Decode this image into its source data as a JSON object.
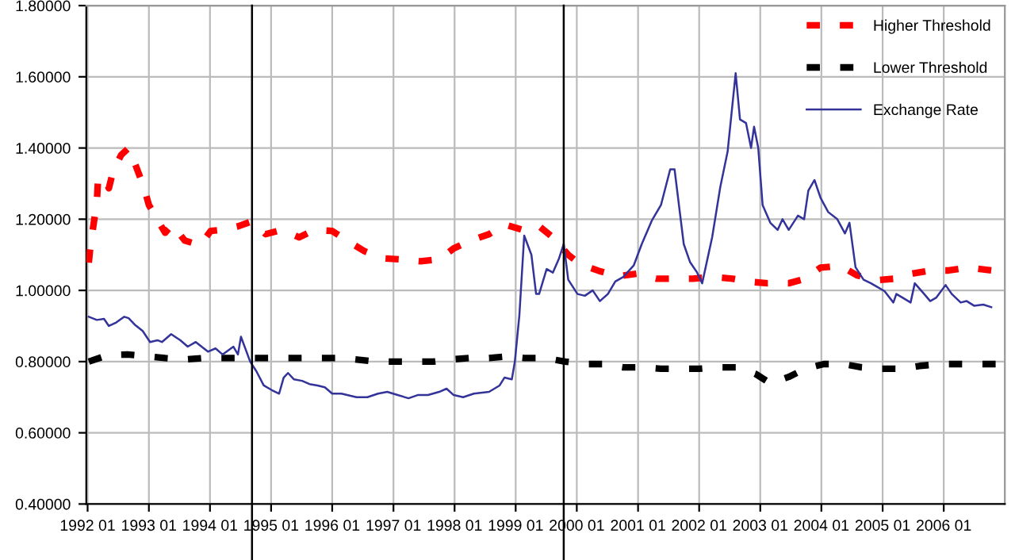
{
  "chart_data": {
    "type": "line",
    "series": [
      {
        "name": "Higher Threshold",
        "color": "#ff0000",
        "line_style": "dashed",
        "marker": "none",
        "x": [
          "1992-01-08",
          "1992-01-19",
          "1992-02-07",
          "1992-02-25",
          "1992-03-02",
          "1992-04-08",
          "1992-05-07",
          "1992-06-02",
          "1992-07-19",
          "1992-09-02",
          "1992-10-19",
          "1992-12-02",
          "1993-01-01",
          "1993-02-21",
          "1993-04-08",
          "1993-05-21",
          "1993-08-03",
          "1993-11-03",
          "1994-01-05",
          "1994-03-09",
          "1994-06-17",
          "1994-09-09",
          "1994-11-29",
          "1995-03-06",
          "1995-06-17",
          "1995-09-17",
          "1996-01-01",
          "1996-04-12",
          "1996-07-12",
          "1996-10-29",
          "1997-02-14",
          "1997-06-13",
          "1997-10-01",
          "1997-12-27",
          "1998-04-08",
          "1998-07-26",
          "1998-10-26",
          "1999-02-11",
          "1999-05-21",
          "1999-08-21",
          "1999-11-11",
          "2000-01-23",
          "2000-05-11",
          "2000-09-06",
          "2000-12-24",
          "2001-04-19",
          "2001-08-07",
          "2001-11-25",
          "2002-03-20",
          "2002-07-19",
          "2002-11-07",
          "2003-02-14",
          "2003-06-20",
          "2003-09-27",
          "2003-12-27",
          "2004-04-23",
          "2004-08-03",
          "2004-11-29",
          "2005-03-17",
          "2005-06-24",
          "2005-10-12",
          "2006-01-30",
          "2006-05-25",
          "2006-10-12"
        ],
        "values": [
          1.078,
          1.13,
          1.19,
          1.247,
          1.3,
          1.32,
          1.287,
          1.336,
          1.38,
          1.4,
          1.345,
          1.29,
          1.24,
          1.198,
          1.162,
          1.185,
          1.14,
          1.127,
          1.167,
          1.17,
          1.18,
          1.194,
          1.158,
          1.17,
          1.149,
          1.17,
          1.167,
          1.136,
          1.11,
          1.09,
          1.087,
          1.082,
          1.087,
          1.118,
          1.14,
          1.158,
          1.185,
          1.17,
          1.18,
          1.145,
          1.1,
          1.073,
          1.055,
          1.04,
          1.047,
          1.033,
          1.033,
          1.033,
          1.038,
          1.033,
          1.024,
          1.02,
          1.02,
          1.033,
          1.064,
          1.069,
          1.042,
          1.029,
          1.033,
          1.047,
          1.056,
          1.056,
          1.064,
          1.056
        ]
      },
      {
        "name": "Lower Threshold",
        "color": "#000000",
        "line_style": "dashed",
        "marker": "none",
        "x": [
          "1992-01-08",
          "1992-05-07",
          "1992-08-25",
          "1992-12-20",
          "1993-04-08",
          "1993-08-03",
          "1993-11-21",
          "1994-03-17",
          "1994-07-05",
          "1994-11-03",
          "1995-02-18",
          "1995-06-17",
          "1995-10-05",
          "1996-01-30",
          "1996-05-18",
          "1996-09-13",
          "1997-01-01",
          "1997-04-26",
          "1997-08-25",
          "1997-12-13",
          "1998-03-27",
          "1998-07-26",
          "1998-11-14",
          "1999-02-21",
          "1999-06-27",
          "1999-10-23",
          "2000-02-18",
          "2000-06-06",
          "2000-10-05",
          "2001-01-23",
          "2001-05-18",
          "2001-09-06",
          "2002-01-01",
          "2002-04-19",
          "2002-08-14",
          "2002-12-02",
          "2003-03-02",
          "2003-06-20",
          "2003-09-27",
          "2004-01-15",
          "2004-05-11",
          "2004-08-29",
          "2004-12-27",
          "2005-04-23",
          "2005-08-11",
          "2005-12-06",
          "2006-03-24",
          "2006-07-19",
          "2006-11-07"
        ],
        "values": [
          0.8,
          0.819,
          0.82,
          0.815,
          0.81,
          0.806,
          0.81,
          0.81,
          0.81,
          0.81,
          0.81,
          0.81,
          0.81,
          0.81,
          0.806,
          0.8,
          0.8,
          0.8,
          0.8,
          0.806,
          0.81,
          0.81,
          0.815,
          0.81,
          0.81,
          0.8,
          0.793,
          0.793,
          0.784,
          0.784,
          0.78,
          0.78,
          0.78,
          0.784,
          0.784,
          0.766,
          0.739,
          0.757,
          0.78,
          0.793,
          0.793,
          0.784,
          0.78,
          0.78,
          0.788,
          0.793,
          0.793,
          0.793,
          0.793
        ]
      },
      {
        "name": "Exchange Rate",
        "color": "#333399",
        "line_style": "solid",
        "marker": "none",
        "x": [
          "1992-01-08",
          "1992-02-25",
          "1992-04-08",
          "1992-05-07",
          "1992-06-20",
          "1992-08-07",
          "1992-09-02",
          "1992-10-08",
          "1992-11-25",
          "1993-01-08",
          "1993-02-21",
          "1993-03-20",
          "1993-05-14",
          "1993-07-08",
          "1993-08-21",
          "1993-10-08",
          "1993-12-20",
          "1994-02-03",
          "1994-03-17",
          "1994-05-21",
          "1994-06-17",
          "1994-07-05",
          "1994-08-29",
          "1994-10-05",
          "1994-11-18",
          "1995-01-05",
          "1995-02-18",
          "1995-03-17",
          "1995-04-12",
          "1995-05-18",
          "1995-07-05",
          "1995-08-18",
          "1995-10-05",
          "1995-11-18",
          "1996-01-01",
          "1996-02-25",
          "1996-05-25",
          "1996-07-29",
          "1996-10-01",
          "1996-11-25",
          "1997-01-26",
          "1997-04-01",
          "1997-05-25",
          "1997-07-26",
          "1997-10-01",
          "1997-11-14",
          "1997-12-27",
          "1998-02-21",
          "1998-04-26",
          "1998-07-26",
          "1998-09-27",
          "1998-10-26",
          "1998-12-09",
          "1998-12-27",
          "1999-01-23",
          "1999-02-21",
          "1999-04-05",
          "1999-05-03",
          "1999-05-21",
          "1999-07-05",
          "1999-08-11",
          "1999-09-17",
          "1999-10-15",
          "1999-11-11",
          "2000-01-05",
          "2000-02-18",
          "2000-04-05",
          "2000-05-18",
          "2000-07-05",
          "2000-08-18",
          "2000-10-05",
          "2000-12-06",
          "2001-01-23",
          "2001-03-24",
          "2001-05-18",
          "2001-07-12",
          "2001-08-07",
          "2001-10-01",
          "2001-11-07",
          "2001-12-20",
          "2002-01-19",
          "2002-03-20",
          "2002-05-07",
          "2002-06-20",
          "2002-08-07",
          "2002-09-02",
          "2002-10-08",
          "2002-11-07",
          "2002-11-25",
          "2002-12-20",
          "2003-01-15",
          "2003-03-02",
          "2003-04-15",
          "2003-05-14",
          "2003-06-20",
          "2003-08-14",
          "2003-09-20",
          "2003-10-15",
          "2003-11-21",
          "2003-12-27",
          "2004-02-11",
          "2004-04-05",
          "2004-05-21",
          "2004-06-17",
          "2004-07-23",
          "2004-09-09",
          "2004-10-23",
          "2004-11-29",
          "2005-01-12",
          "2005-03-06",
          "2005-03-24",
          "2005-04-29",
          "2005-06-17",
          "2005-07-12",
          "2005-09-06",
          "2005-10-12",
          "2005-11-18",
          "2006-01-12",
          "2006-02-18",
          "2006-04-12",
          "2006-05-18",
          "2006-07-01",
          "2006-08-25",
          "2006-10-12"
        ],
        "values": [
          0.926,
          0.917,
          0.92,
          0.9,
          0.91,
          0.926,
          0.922,
          0.904,
          0.886,
          0.855,
          0.86,
          0.855,
          0.877,
          0.86,
          0.842,
          0.855,
          0.828,
          0.837,
          0.82,
          0.842,
          0.82,
          0.87,
          0.8,
          0.773,
          0.733,
          0.72,
          0.71,
          0.755,
          0.768,
          0.75,
          0.746,
          0.737,
          0.733,
          0.728,
          0.71,
          0.71,
          0.7,
          0.7,
          0.71,
          0.715,
          0.706,
          0.697,
          0.706,
          0.706,
          0.715,
          0.724,
          0.706,
          0.7,
          0.71,
          0.715,
          0.733,
          0.755,
          0.75,
          0.8,
          0.93,
          1.154,
          1.1,
          0.99,
          0.99,
          1.06,
          1.05,
          1.09,
          1.13,
          1.03,
          0.99,
          0.985,
          1.0,
          0.97,
          0.99,
          1.025,
          1.038,
          1.07,
          1.13,
          1.196,
          1.24,
          1.34,
          1.34,
          1.13,
          1.08,
          1.05,
          1.02,
          1.15,
          1.29,
          1.39,
          1.61,
          1.48,
          1.47,
          1.4,
          1.46,
          1.4,
          1.24,
          1.19,
          1.17,
          1.2,
          1.17,
          1.21,
          1.2,
          1.28,
          1.31,
          1.26,
          1.22,
          1.2,
          1.16,
          1.19,
          1.065,
          1.03,
          1.02,
          1.01,
          0.998,
          0.966,
          0.99,
          0.98,
          0.966,
          1.02,
          0.99,
          0.97,
          0.98,
          1.015,
          0.99,
          0.966,
          0.97,
          0.957,
          0.96,
          0.953
        ]
      }
    ],
    "xlim": [
      "1991-12-24",
      "2007-01-01"
    ],
    "xticks": [
      {
        "value": "1992-01",
        "label": "1992 01"
      },
      {
        "value": "1993-01",
        "label": "1993 01"
      },
      {
        "value": "1994-01",
        "label": "1994 01"
      },
      {
        "value": "1995-01",
        "label": "1995 01"
      },
      {
        "value": "1996-01",
        "label": "1996 01"
      },
      {
        "value": "1997-01",
        "label": "1997 01"
      },
      {
        "value": "1998-01",
        "label": "1998 01"
      },
      {
        "value": "1999-01",
        "label": "1999 01"
      },
      {
        "value": "2000-01",
        "label": "2000 01"
      },
      {
        "value": "2001-01",
        "label": "2001 01"
      },
      {
        "value": "2002-01",
        "label": "2002 01"
      },
      {
        "value": "2003-01",
        "label": "2003 01"
      },
      {
        "value": "2004-01",
        "label": "2004 01"
      },
      {
        "value": "2005-01",
        "label": "2005 01"
      },
      {
        "value": "2006-01",
        "label": "2006 01"
      }
    ],
    "ylim": [
      0.4,
      1.8
    ],
    "yticks": [
      {
        "value": 0.4,
        "label": "0.40000"
      },
      {
        "value": 0.6,
        "label": "0.60000"
      },
      {
        "value": 0.8,
        "label": "0.80000"
      },
      {
        "value": 1.0,
        "label": "1.00000"
      },
      {
        "value": 1.2,
        "label": "1.20000"
      },
      {
        "value": 1.4,
        "label": "1.40000"
      },
      {
        "value": 1.6,
        "label": "1.60000"
      },
      {
        "value": 1.8,
        "label": "1.80000"
      }
    ],
    "ref_lines": [
      {
        "axis": "x",
        "value": "1994-09-09",
        "color": "#000000",
        "line_style": "solid"
      },
      {
        "axis": "x",
        "value": "1999-10-15",
        "color": "#000000",
        "line_style": "solid"
      }
    ],
    "grid": true,
    "legend": "top right"
  }
}
